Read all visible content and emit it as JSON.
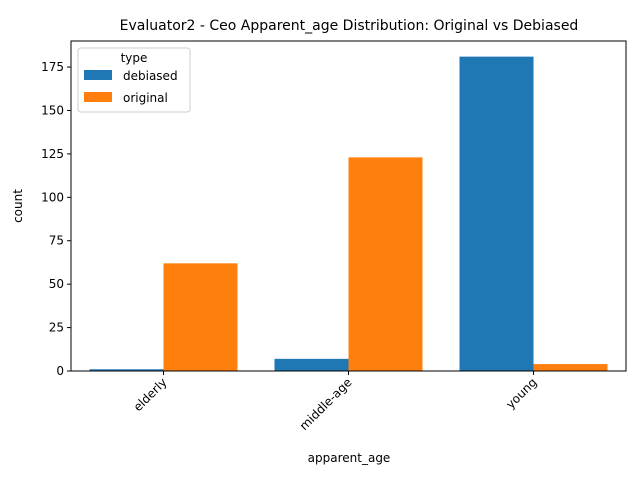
{
  "chart_data": {
    "type": "bar",
    "title": "Evaluator2 - Ceo Apparent_age Distribution: Original vs Debiased",
    "xlabel": "apparent_age",
    "ylabel": "count",
    "categories": [
      "elderly",
      "middle-age",
      "young"
    ],
    "series": [
      {
        "name": "debiased",
        "values": [
          1,
          7,
          181
        ],
        "color": "#1f77b4"
      },
      {
        "name": "original",
        "values": [
          62,
          123,
          4
        ],
        "color": "#ff7f0e"
      }
    ],
    "ylim": [
      0,
      190.0
    ],
    "yticks": [
      0,
      25,
      50,
      75,
      100,
      125,
      150,
      175
    ],
    "grid": false,
    "legend": {
      "title": "type",
      "placement": "top-left"
    },
    "xtick_rotation_deg": 45
  }
}
